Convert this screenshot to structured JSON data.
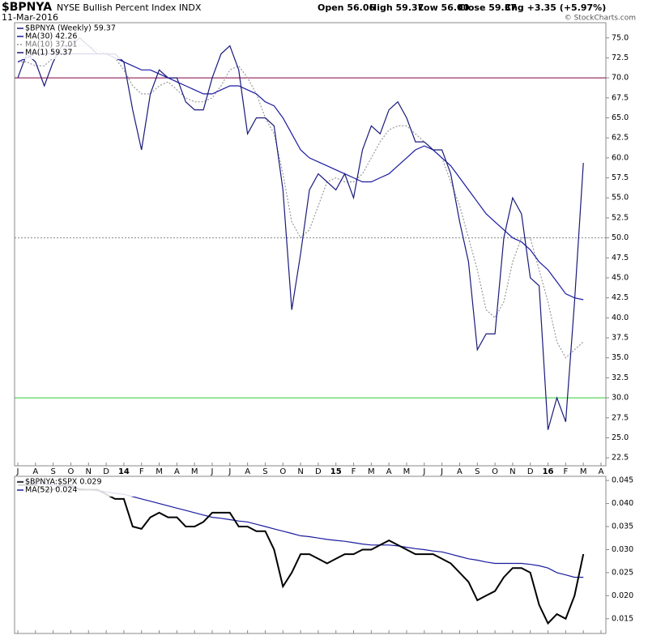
{
  "chart_data": [
    {
      "type": "line",
      "title": "$BPNYA",
      "subtitle": "NYSE Bullish Percent Index INDX",
      "date": "11-Mar-2016",
      "quote": [
        "Open 56.06",
        "High 59.37",
        "Low 56.00",
        "Close 59.37",
        "Chg +3.35 (+5.97%)"
      ],
      "credit": "© StockCharts.com",
      "categories": [
        "J",
        null,
        "A",
        null,
        "S",
        null,
        "O",
        null,
        "N",
        null,
        "D",
        null,
        "14",
        null,
        "F",
        null,
        "M",
        null,
        "A",
        null,
        "M",
        null,
        "J",
        null,
        "J",
        null,
        "A",
        null,
        "S",
        null,
        "O",
        null,
        "N",
        null,
        "D",
        null,
        "15",
        null,
        "F",
        null,
        "M",
        null,
        "A",
        null,
        "M",
        null,
        "J",
        null,
        "J",
        null,
        "A",
        null,
        "S",
        null,
        "O",
        null,
        "N",
        null,
        "D",
        null,
        "16",
        null,
        "F",
        null,
        "M",
        null,
        "A"
      ],
      "series": [
        {
          "name": "$BPNYA (Weekly) 59.37",
          "color": "#1a1a7a",
          "style": "solid",
          "values": [
            70,
            73,
            72,
            69,
            72,
            74,
            74,
            75,
            74,
            73,
            73,
            73,
            72,
            66,
            61,
            68,
            71,
            70,
            70,
            67,
            66,
            66,
            70,
            73,
            74,
            71,
            63,
            65,
            65,
            64,
            56,
            41,
            48,
            56,
            58,
            57,
            56,
            58,
            55,
            61,
            64,
            63,
            66,
            67,
            65,
            62,
            62,
            61,
            61,
            58,
            52,
            47,
            36,
            38,
            38,
            50,
            55,
            53,
            45,
            44,
            26,
            30,
            27,
            42,
            59.37,
            null,
            null
          ]
        },
        {
          "name": "MA(30) 42.26",
          "color": "#1a1aa0",
          "style": "solid",
          "values": [
            72,
            72.5,
            73,
            73,
            73,
            73,
            73,
            73,
            73,
            73,
            73,
            72.5,
            72,
            71.5,
            71,
            71,
            70.5,
            70,
            69.5,
            69,
            68.5,
            68,
            68,
            68.5,
            69,
            69,
            68.5,
            68,
            67,
            66.5,
            65,
            63,
            61,
            60,
            59.5,
            59,
            58.5,
            58,
            57.5,
            57,
            57,
            57.5,
            58,
            59,
            60,
            61,
            61.5,
            61,
            60,
            59,
            57.5,
            56,
            54.5,
            53,
            52,
            51,
            50,
            49.5,
            48.5,
            47,
            46,
            44.5,
            43,
            42.5,
            42.26,
            null,
            null
          ]
        },
        {
          "name": "MA(10) 37.01",
          "color": "#999999",
          "style": "dotted",
          "values": [
            72,
            72,
            71.5,
            71.5,
            72.5,
            73.5,
            74,
            74,
            74,
            73.5,
            73,
            72.5,
            71,
            69,
            68,
            68,
            69,
            69.5,
            68.5,
            67.5,
            67,
            67,
            67.5,
            69,
            71,
            71.5,
            70,
            68,
            65,
            63,
            58,
            52,
            50,
            51,
            54,
            57,
            57.5,
            57,
            57,
            58,
            60,
            62,
            63.5,
            64,
            64,
            63,
            62,
            61,
            60,
            57,
            54,
            50,
            46,
            41,
            40,
            42,
            47,
            50,
            50,
            46,
            42,
            37,
            35,
            36,
            37.01,
            null,
            null
          ]
        }
      ],
      "legend_extra": "MA(1) 59.37",
      "hlines": [
        {
          "value": 70,
          "color": "#800040",
          "style": "solid"
        },
        {
          "value": 50,
          "color": "#888888",
          "style": "dotted"
        },
        {
          "value": 30,
          "color": "#33cc33",
          "style": "solid"
        }
      ],
      "ylim": [
        21.5,
        76.9
      ],
      "yticks": [
        22.5,
        {
          "value": 25,
          "label": "25.0"
        },
        27.5,
        {
          "value": 30,
          "label": "30.0"
        },
        32.5,
        {
          "value": 35,
          "label": "35.0"
        },
        37.5,
        {
          "value": 40,
          "label": "40.0"
        },
        42.5,
        {
          "value": 45,
          "label": "45.0"
        },
        47.5,
        {
          "value": 50,
          "label": "50.0"
        },
        52.5,
        {
          "value": 55,
          "label": "55.0"
        },
        57.5,
        {
          "value": 60,
          "label": "60.0"
        },
        62.5,
        {
          "value": 65,
          "label": "65.0"
        },
        67.5,
        {
          "value": 70,
          "label": "70.0"
        },
        72.5,
        {
          "value": 75,
          "label": "75.0"
        }
      ]
    },
    {
      "type": "line",
      "series": [
        {
          "name": "$BPNYA:$SPX 0.029",
          "color": "#000000",
          "style": "thick",
          "values": [
            0.044,
            0.044,
            0.044,
            0.043,
            0.043,
            0.044,
            0.044,
            0.043,
            0.043,
            0.043,
            0.042,
            0.041,
            0.041,
            0.035,
            0.0345,
            0.037,
            0.038,
            0.037,
            0.037,
            0.035,
            0.035,
            0.036,
            0.038,
            0.038,
            0.038,
            0.035,
            0.035,
            0.034,
            0.034,
            0.03,
            0.022,
            0.025,
            0.029,
            0.029,
            0.028,
            0.027,
            0.028,
            0.029,
            0.029,
            0.03,
            0.03,
            0.031,
            0.032,
            0.031,
            0.03,
            0.029,
            0.029,
            0.029,
            0.028,
            0.027,
            0.025,
            0.023,
            0.019,
            0.02,
            0.021,
            0.024,
            0.026,
            0.026,
            0.025,
            0.018,
            0.014,
            0.016,
            0.015,
            0.02,
            0.029,
            null,
            null
          ]
        },
        {
          "name": "MA(52) 0.024",
          "color": "#1a1aa0",
          "style": "solid",
          "values": [
            0.045,
            0.0448,
            0.0445,
            0.0443,
            0.044,
            0.0438,
            0.0435,
            0.0432,
            0.043,
            0.0428,
            0.0425,
            0.0422,
            0.042,
            0.0415,
            0.041,
            0.0405,
            0.04,
            0.0395,
            0.039,
            0.0385,
            0.038,
            0.0375,
            0.037,
            0.0368,
            0.0365,
            0.0362,
            0.036,
            0.0355,
            0.035,
            0.0345,
            0.034,
            0.0335,
            0.033,
            0.0328,
            0.0325,
            0.0322,
            0.032,
            0.0318,
            0.0315,
            0.0312,
            0.031,
            0.031,
            0.031,
            0.0308,
            0.0305,
            0.0302,
            0.03,
            0.0297,
            0.0295,
            0.029,
            0.0285,
            0.028,
            0.0277,
            0.0273,
            0.027,
            0.027,
            0.027,
            0.027,
            0.0268,
            0.0265,
            0.026,
            0.025,
            0.0245,
            0.024,
            0.024,
            null,
            null
          ]
        }
      ],
      "ylim": [
        0.0118,
        0.0459
      ],
      "yticks": [
        0.015,
        {
          "value": 0.02,
          "label": "0.020"
        },
        0.025,
        {
          "value": 0.03,
          "label": "0.030"
        },
        0.035,
        {
          "value": 0.04,
          "label": "0.040"
        },
        0.045
      ]
    }
  ]
}
